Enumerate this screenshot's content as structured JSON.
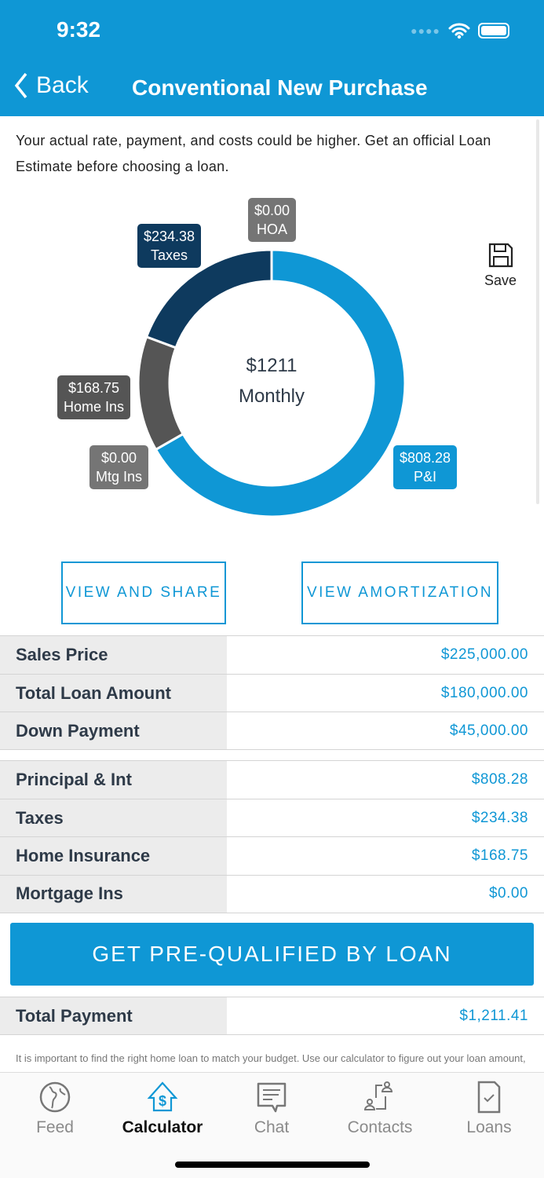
{
  "status_bar": {
    "time": "9:32"
  },
  "nav": {
    "back_label": "Back",
    "title": "Conventional New Purchase"
  },
  "disclaimer": "Your actual rate, payment, and costs could be higher. Get an official Loan Estimate before choosing a loan.",
  "chart_data": {
    "type": "pie",
    "center_value": "$1211",
    "center_label": "Monthly",
    "slices": [
      {
        "name": "P&I",
        "value": 808.28,
        "label": "$808.28",
        "color": "#0f97d5"
      },
      {
        "name": "Mtg Ins",
        "value": 0,
        "label": "$0.00",
        "color": "#757575"
      },
      {
        "name": "Home Ins",
        "value": 168.75,
        "label": "$168.75",
        "color": "#555555"
      },
      {
        "name": "Taxes",
        "value": 234.38,
        "label": "$234.38",
        "color": "#0e3a5e"
      },
      {
        "name": "HOA",
        "value": 0,
        "label": "$0.00",
        "color": "#757575"
      }
    ]
  },
  "save_label": "Save",
  "buttons": {
    "view_share": "VIEW AND SHARE",
    "view_amortization": "VIEW AMORTIZATION",
    "prequalify": "GET PRE-QUALIFIED BY LOAN"
  },
  "loan_rows": [
    {
      "k": "Sales Price",
      "v": "$225,000.00"
    },
    {
      "k": "Total Loan Amount",
      "v": "$180,000.00"
    },
    {
      "k": "Down Payment",
      "v": "$45,000.00"
    }
  ],
  "payment_rows": [
    {
      "k": "Principal & Int",
      "v": "$808.28"
    },
    {
      "k": "Taxes",
      "v": "$234.38"
    },
    {
      "k": "Home Insurance",
      "v": "$168.75"
    },
    {
      "k": "Mortgage Ins",
      "v": "$0.00"
    }
  ],
  "total": {
    "k": "Total Payment",
    "v": "$1,211.41"
  },
  "footer_text": "It is important to find the right home loan to match your budget. Use our calculator to figure out your loan amount, interest rate and length of mortgage. Taxes and insurance amounts are not required but",
  "tabs": [
    {
      "label": "Feed"
    },
    {
      "label": "Calculator"
    },
    {
      "label": "Chat"
    },
    {
      "label": "Contacts"
    },
    {
      "label": "Loans"
    }
  ]
}
